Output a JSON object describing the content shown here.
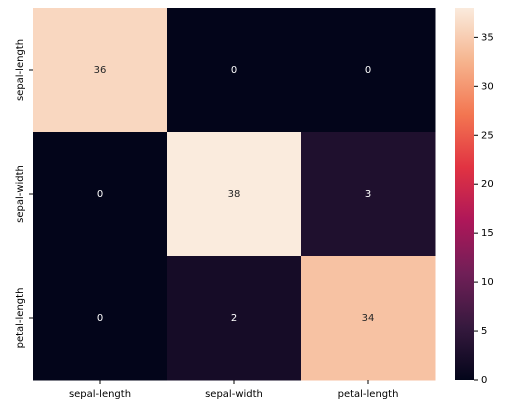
{
  "chart_data": {
    "type": "heatmap",
    "x_categories": [
      "sepal-length",
      "sepal-width",
      "petal-length"
    ],
    "y_categories": [
      "sepal-length",
      "sepal-width",
      "petal-length"
    ],
    "values": [
      [
        36,
        0,
        0
      ],
      [
        0,
        38,
        3
      ],
      [
        0,
        2,
        34
      ]
    ],
    "zlim": [
      0,
      38
    ],
    "zticks": [
      0,
      5,
      10,
      15,
      20,
      25,
      30,
      35
    ],
    "colorscale": [
      "#03051A",
      "#36193E",
      "#701F57",
      "#AE1759",
      "#E13342",
      "#F37651",
      "#F6B48E",
      "#FAEBDD"
    ]
  }
}
